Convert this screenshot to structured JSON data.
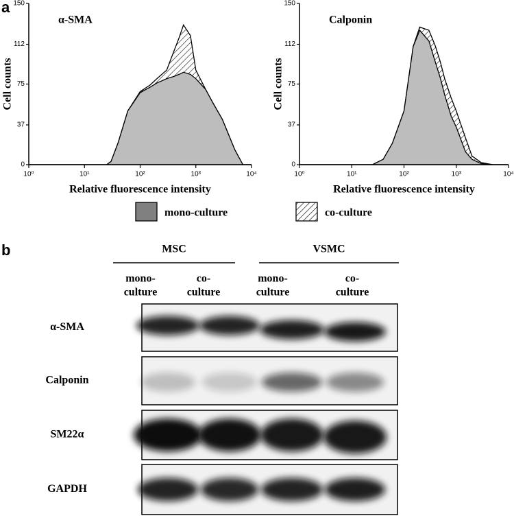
{
  "panel_labels": [
    "a",
    "b"
  ],
  "chart_data": [
    {
      "type": "area",
      "title": "α-SMA",
      "xlabel": "Relative fluorescence intensity",
      "ylabel": "Cell counts",
      "xscale": "log",
      "xlim": [
        1,
        10000
      ],
      "xticks": [
        {
          "value": 1,
          "label": "10⁰"
        },
        {
          "value": 10,
          "label": "10¹"
        },
        {
          "value": 100,
          "label": "10²"
        },
        {
          "value": 1000,
          "label": "10³"
        },
        {
          "value": 10000,
          "label": "10⁴"
        }
      ],
      "ylim": [
        0,
        150
      ],
      "yticks": [
        0,
        37,
        75,
        112,
        150
      ],
      "x": [
        1,
        25,
        30,
        40,
        60,
        100,
        150,
        200,
        300,
        400,
        500,
        600,
        800,
        1000,
        1500,
        2000,
        3000,
        5000,
        7000,
        10000
      ],
      "series": [
        {
          "name": "co-culture",
          "color": "#ffffff",
          "hatch": true,
          "values": [
            0,
            0,
            3,
            20,
            50,
            68,
            74,
            80,
            88,
            105,
            118,
            130,
            120,
            88,
            70,
            58,
            42,
            14,
            0,
            0
          ]
        },
        {
          "name": "mono-culture",
          "color": "#bdbdbd",
          "hatch": false,
          "values": [
            0,
            0,
            3,
            20,
            50,
            67,
            72,
            76,
            80,
            82,
            84,
            86,
            84,
            80,
            70,
            58,
            42,
            14,
            0,
            0
          ]
        }
      ]
    },
    {
      "type": "area",
      "title": "Calponin",
      "xlabel": "Relative fluorescence intensity",
      "ylabel": "Cell counts",
      "xscale": "log",
      "xlim": [
        1,
        10000
      ],
      "xticks": [
        {
          "value": 1,
          "label": "10⁰"
        },
        {
          "value": 10,
          "label": "10¹"
        },
        {
          "value": 100,
          "label": "10²"
        },
        {
          "value": 1000,
          "label": "10³"
        },
        {
          "value": 10000,
          "label": "10⁴"
        }
      ],
      "ylim": [
        0,
        150
      ],
      "yticks": [
        0,
        37,
        75,
        112,
        150
      ],
      "x": [
        1,
        25,
        30,
        40,
        60,
        100,
        150,
        200,
        300,
        400,
        500,
        600,
        800,
        1000,
        1500,
        2000,
        3000,
        5000,
        7000,
        10000
      ],
      "series": [
        {
          "name": "co-culture",
          "color": "#ffffff",
          "hatch": true,
          "values": [
            0,
            0,
            2,
            5,
            20,
            50,
            110,
            128,
            125,
            110,
            95,
            80,
            62,
            50,
            25,
            8,
            2,
            0,
            0,
            0
          ]
        },
        {
          "name": "mono-culture",
          "color": "#bdbdbd",
          "hatch": false,
          "values": [
            0,
            0,
            2,
            5,
            20,
            50,
            110,
            125,
            115,
            95,
            80,
            65,
            45,
            35,
            12,
            5,
            1,
            0,
            0,
            0
          ]
        }
      ]
    }
  ],
  "blot": {
    "groups": [
      "MSC",
      "VSMC"
    ],
    "columns": [
      [
        "mono-",
        "culture"
      ],
      [
        "co-",
        "culture"
      ],
      [
        "mono-",
        "culture"
      ],
      [
        "co-",
        "culture"
      ]
    ],
    "rows": [
      "α-SMA",
      "Calponin",
      "SM22α",
      "GAPDH"
    ]
  }
}
